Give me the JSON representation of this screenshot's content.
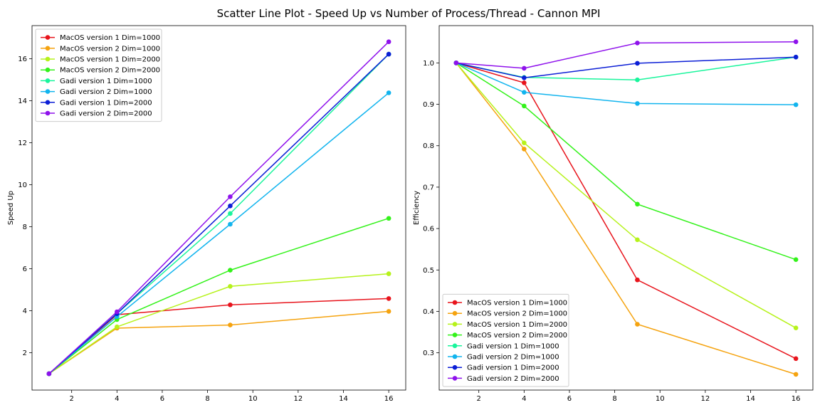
{
  "figure": {
    "title": "Scatter Line Plot - Speed Up vs Number of Process/Thread - Cannon MPI"
  },
  "chart_data": [
    {
      "type": "line",
      "markers": true,
      "title": "",
      "xlabel": "",
      "ylabel": "Speed Up",
      "xlim": [
        0.25,
        16.75
      ],
      "ylim": [
        0.22,
        17.58
      ],
      "xticks": [
        2,
        4,
        6,
        8,
        10,
        12,
        14,
        16
      ],
      "yticks": [
        2,
        4,
        6,
        8,
        10,
        12,
        14,
        16
      ],
      "grid": false,
      "legend_position": "upper left",
      "x": [
        1,
        4,
        9,
        16
      ],
      "series": [
        {
          "name": "MacOS version 1 Dim=1000",
          "color": "#e8141c",
          "values": [
            1.0,
            3.81,
            4.28,
            4.58
          ]
        },
        {
          "name": "MacOS version 2 Dim=1000",
          "color": "#f5a30f",
          "values": [
            1.0,
            3.17,
            3.32,
            3.97
          ]
        },
        {
          "name": "MacOS version 1 Dim=2000",
          "color": "#b6f21b",
          "values": [
            1.0,
            3.23,
            5.16,
            5.76
          ]
        },
        {
          "name": "MacOS version 2 Dim=2000",
          "color": "#33f21a",
          "values": [
            1.0,
            3.58,
            5.93,
            8.4
          ]
        },
        {
          "name": "Gadi version 1 Dim=1000",
          "color": "#19f59c",
          "values": [
            1.0,
            3.86,
            8.63,
            16.22
          ]
        },
        {
          "name": "Gadi version 2 Dim=1000",
          "color": "#11b4ee",
          "values": [
            1.0,
            3.72,
            8.12,
            14.38
          ]
        },
        {
          "name": "Gadi version 1 Dim=2000",
          "color": "#0b1ed6",
          "values": [
            1.0,
            3.86,
            8.99,
            16.22
          ]
        },
        {
          "name": "Gadi version 2 Dim=2000",
          "color": "#8f12ec",
          "values": [
            1.0,
            3.95,
            9.43,
            16.81
          ]
        }
      ]
    },
    {
      "type": "line",
      "markers": true,
      "title": "",
      "xlabel": "",
      "ylabel": "Efficiency",
      "xlim": [
        0.25,
        16.75
      ],
      "ylim": [
        0.21,
        1.09
      ],
      "xticks": [
        2,
        4,
        6,
        8,
        10,
        12,
        14,
        16
      ],
      "yticks": [
        0.3,
        0.4,
        0.5,
        0.6,
        0.7,
        0.8,
        0.9,
        1.0
      ],
      "grid": false,
      "legend_position": "lower left",
      "x": [
        1,
        4,
        9,
        16
      ],
      "series": [
        {
          "name": "MacOS version 1 Dim=1000",
          "color": "#e8141c",
          "values": [
            1.0,
            0.952,
            0.476,
            0.286
          ]
        },
        {
          "name": "MacOS version 2 Dim=1000",
          "color": "#f5a30f",
          "values": [
            1.0,
            0.792,
            0.369,
            0.248
          ]
        },
        {
          "name": "MacOS version 1 Dim=2000",
          "color": "#b6f21b",
          "values": [
            1.0,
            0.807,
            0.573,
            0.36
          ]
        },
        {
          "name": "MacOS version 2 Dim=2000",
          "color": "#33f21a",
          "values": [
            1.0,
            0.896,
            0.659,
            0.525
          ]
        },
        {
          "name": "Gadi version 1 Dim=1000",
          "color": "#19f59c",
          "values": [
            1.0,
            0.965,
            0.959,
            1.014
          ]
        },
        {
          "name": "Gadi version 2 Dim=1000",
          "color": "#11b4ee",
          "values": [
            1.0,
            0.929,
            0.902,
            0.899
          ]
        },
        {
          "name": "Gadi version 1 Dim=2000",
          "color": "#0b1ed6",
          "values": [
            1.0,
            0.964,
            0.999,
            1.014
          ]
        },
        {
          "name": "Gadi version 2 Dim=2000",
          "color": "#8f12ec",
          "values": [
            1.0,
            0.987,
            1.048,
            1.051
          ]
        }
      ]
    }
  ]
}
